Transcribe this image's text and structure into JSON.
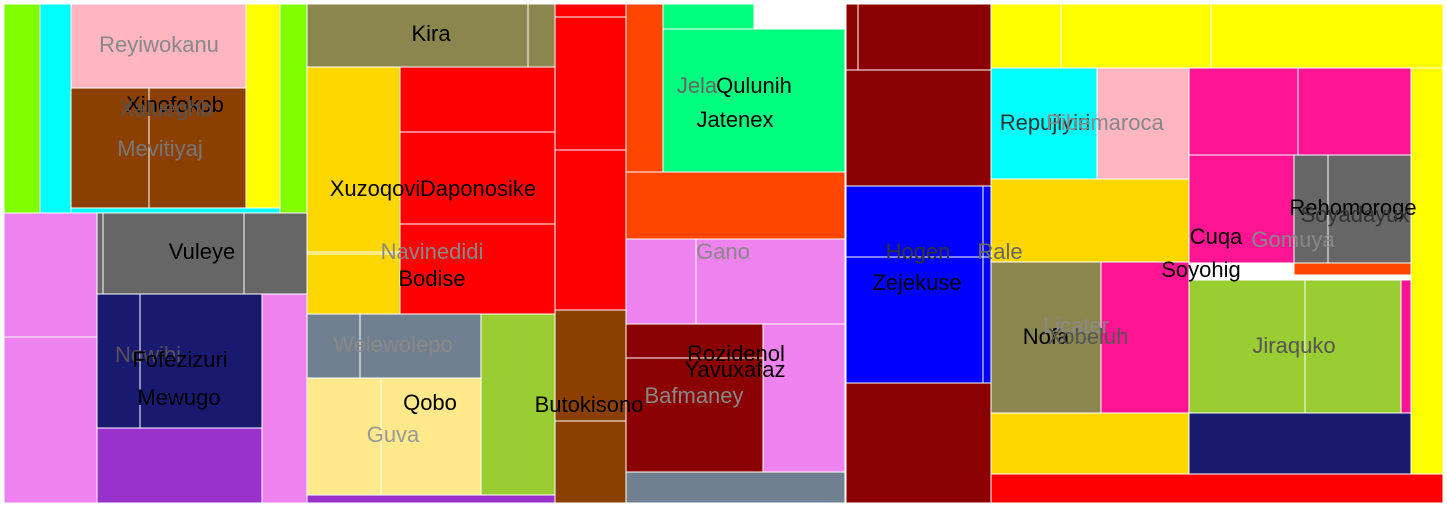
{
  "chart_data": {
    "type": "treemap",
    "title": "",
    "cells": [
      {
        "name": "",
        "color": "#7FFF00"
      },
      {
        "name": "",
        "color": "#00FFFF"
      },
      {
        "name": "Reyiwokanu",
        "color": "#FFB6C1",
        "label_color": "#888888"
      },
      {
        "name": "",
        "color": "#FFFF00"
      },
      {
        "name": "",
        "color": "#7FFF00"
      },
      {
        "name": "Xinofokob",
        "color": "#8B4000",
        "label_color": "#000000"
      },
      {
        "name": "Xalueghb",
        "color": "#8B4000",
        "label_color": "#555555"
      },
      {
        "name": "Mevitiyaj",
        "color": "#8B4000",
        "label_color": "#777777"
      },
      {
        "name": "",
        "color": "#00FFFF"
      },
      {
        "name": "Kira",
        "color": "#8B864E",
        "label_color": "#000000"
      },
      {
        "name": "",
        "color": "#8B864E"
      },
      {
        "name": "Xuzoqovi",
        "color": "#FFD700",
        "label_color": "#000000"
      },
      {
        "name": "",
        "color": "#FFD700"
      },
      {
        "name": "",
        "color": "#FF0000"
      },
      {
        "name": "Daponosike",
        "color": "#FF0000",
        "label_color": "#000000"
      },
      {
        "name": "Bodise",
        "color": "#FF0000",
        "label_color": "#000000"
      },
      {
        "name": "Navinedidi",
        "color": "#FFD700",
        "label_color": "#888888"
      },
      {
        "name": "",
        "color": "#EE82EE"
      },
      {
        "name": "",
        "color": "#EE82EE"
      },
      {
        "name": "",
        "color": "#666666"
      },
      {
        "name": "Vuleye",
        "color": "#666666",
        "label_color": "#000000"
      },
      {
        "name": "",
        "color": "#666666"
      },
      {
        "name": "",
        "color": "#191970"
      },
      {
        "name": "Nowibi",
        "color": "#191970",
        "label_color": "#555555"
      },
      {
        "name": "Fofezizuri",
        "color": "#191970",
        "label_color": "#000000"
      },
      {
        "name": "Mewugo",
        "color": "#191970",
        "label_color": "#000000"
      },
      {
        "name": "",
        "color": "#9932CC"
      },
      {
        "name": "",
        "color": "#EE82EE"
      },
      {
        "name": "Welewolepo",
        "color": "#708090",
        "label_color": "#888888"
      },
      {
        "name": "",
        "color": "#708090"
      },
      {
        "name": "Qobo",
        "color": "#FFE98A",
        "label_color": "#000000"
      },
      {
        "name": "Guva",
        "color": "#FFE98A",
        "label_color": "#999999"
      },
      {
        "name": "",
        "color": "#9ACD32"
      },
      {
        "name": "",
        "color": "#9932CC"
      },
      {
        "name": "",
        "color": "#FF0000"
      },
      {
        "name": "",
        "color": "#FF0000"
      },
      {
        "name": "",
        "color": "#FF0000"
      },
      {
        "name": "Butokisono",
        "color": "#8B4000",
        "label_color": "#000000"
      },
      {
        "name": "",
        "color": "#8B4000"
      },
      {
        "name": "",
        "color": "#FF4500"
      },
      {
        "name": "",
        "color": "#00FF7F"
      },
      {
        "name": "Jela",
        "color": "#00FF7F",
        "label_color": "#666666"
      },
      {
        "name": "Qulunih",
        "color": "#00FF7F",
        "label_color": "#000000"
      },
      {
        "name": "Jatenex",
        "color": "#00FF7F",
        "label_color": "#000000"
      },
      {
        "name": "",
        "color": "#FF4500"
      },
      {
        "name": "",
        "color": "#EE82EE"
      },
      {
        "name": "Gano",
        "color": "#EE82EE",
        "label_color": "#888888"
      },
      {
        "name": "Rozidenol",
        "color": "#8B0000",
        "label_color": "#000000"
      },
      {
        "name": "Yavuxafaz",
        "color": "#8B0000",
        "label_color": "#000000"
      },
      {
        "name": "Bafmaney",
        "color": "#8B0000",
        "label_color": "#888888"
      },
      {
        "name": "",
        "color": "#EE82EE"
      },
      {
        "name": "",
        "color": "#708090"
      },
      {
        "name": "",
        "color": "#8B0000"
      },
      {
        "name": "",
        "color": "#8B0000"
      },
      {
        "name": "",
        "color": "#8B0000"
      },
      {
        "name": "Hogen",
        "color": "#0000FF",
        "label_color": "#333333"
      },
      {
        "name": "Zejekuse",
        "color": "#0000FF",
        "label_color": "#000000"
      },
      {
        "name": "",
        "color": "#0000FF"
      },
      {
        "name": "Rale",
        "color": "#0000FF",
        "label_color": "#666666"
      },
      {
        "name": "",
        "color": "#8B0000"
      },
      {
        "name": "",
        "color": "#FFFF00"
      },
      {
        "name": "",
        "color": "#FFFF00"
      },
      {
        "name": "",
        "color": "#FFFF00"
      },
      {
        "name": "Repujiyiri",
        "color": "#00FFFF",
        "label_color": "#333333"
      },
      {
        "name": "Pibemaroca",
        "color": "#FFB6C1",
        "label_color": "#888888"
      },
      {
        "name": "",
        "color": "#FF1493"
      },
      {
        "name": "",
        "color": "#FF1493"
      },
      {
        "name": "",
        "color": "#FFD700"
      },
      {
        "name": "Cuqa",
        "color": "#FF1493",
        "label_color": "#000000"
      },
      {
        "name": "Gomuya",
        "color": "#FF1493",
        "label_color": "#888888"
      },
      {
        "name": "Rehomoroge",
        "color": "#666666",
        "label_color": "#000000"
      },
      {
        "name": "Soyadayux",
        "color": "#666666",
        "label_color": "#333333"
      },
      {
        "name": "Soyohig",
        "color": "#FF1493",
        "label_color": "#000000"
      },
      {
        "name": "",
        "color": "#FF4500"
      },
      {
        "name": "Nofa",
        "color": "#8B864E",
        "label_color": "#000000"
      },
      {
        "name": "Licater",
        "color": "#FF1493",
        "label_color": "#888888"
      },
      {
        "name": "Xobeluh",
        "color": "#FF1493",
        "label_color": "#555555"
      },
      {
        "name": "Jiraquko",
        "color": "#9ACD32",
        "label_color": "#555555"
      },
      {
        "name": "",
        "color": "#9ACD32"
      },
      {
        "name": "",
        "color": "#FF1493"
      },
      {
        "name": "",
        "color": "#FFFF00"
      },
      {
        "name": "",
        "color": "#FFD700"
      },
      {
        "name": "",
        "color": "#191970"
      },
      {
        "name": "",
        "color": "#FF0000"
      }
    ]
  }
}
